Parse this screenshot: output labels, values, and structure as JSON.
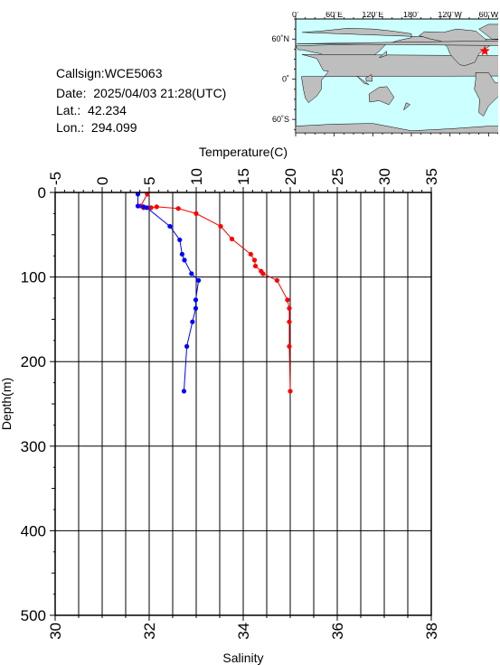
{
  "station": {
    "callsign_line": "Callsign:WCE5063",
    "date_label": "Date:",
    "date_value": "2025/04/03 21:28(UTC)",
    "lat_label": "Lat.:",
    "lat_value": "42.234",
    "lon_label": "Lon.:",
    "lon_value": "294.099"
  },
  "map": {
    "top_labels": [
      "0˚",
      "60˚E",
      "120˚E",
      "180˚",
      "120˚W",
      "60˚W",
      "0˚"
    ],
    "left_labels": [
      "60˚N",
      "0˚",
      "60˚S"
    ],
    "ocean_color": "#ccffff",
    "land_color": "#bebebe",
    "marker_color": "#ff0000",
    "marker_lat": 42.234,
    "marker_lon": 294.099
  },
  "chart_data": {
    "type": "line",
    "ylabel": "Depth(m)",
    "top_axis_label": "Temperature(C)",
    "bottom_axis_label": "Salinity",
    "ylim": [
      0,
      500
    ],
    "y_ticks": [
      "0",
      "100",
      "200",
      "300",
      "400",
      "500"
    ],
    "temp_lim": [
      -5,
      35
    ],
    "temp_ticks": [
      "-5",
      "0",
      "5",
      "10",
      "15",
      "20",
      "25",
      "30",
      "35"
    ],
    "sal_lim": [
      30,
      38
    ],
    "sal_ticks": [
      "30",
      "32",
      "34",
      "36",
      "38"
    ],
    "grid": true,
    "series": [
      {
        "axis": "temperature",
        "color": "#ff0000",
        "points": [
          [
            4.8,
            2
          ],
          [
            4.1,
            16
          ],
          [
            4.4,
            18
          ],
          [
            5.2,
            18
          ],
          [
            5.8,
            17
          ],
          [
            8.1,
            19
          ],
          [
            10.0,
            25
          ],
          [
            12.6,
            40
          ],
          [
            13.8,
            55
          ],
          [
            15.8,
            73
          ],
          [
            16.2,
            80
          ],
          [
            16.3,
            87
          ],
          [
            16.9,
            93
          ],
          [
            17.1,
            96
          ],
          [
            18.6,
            104
          ],
          [
            19.7,
            127
          ],
          [
            19.9,
            137
          ],
          [
            19.9,
            153
          ],
          [
            19.9,
            182
          ],
          [
            20.0,
            235
          ]
        ]
      },
      {
        "axis": "salinity",
        "color": "#0000ff",
        "points": [
          [
            31.76,
            2
          ],
          [
            31.76,
            16
          ],
          [
            31.88,
            17
          ],
          [
            31.95,
            18
          ],
          [
            32.44,
            40
          ],
          [
            32.65,
            56
          ],
          [
            32.7,
            73
          ],
          [
            32.75,
            80
          ],
          [
            32.9,
            96
          ],
          [
            33.05,
            104
          ],
          [
            32.99,
            127
          ],
          [
            32.99,
            137
          ],
          [
            32.92,
            153
          ],
          [
            32.8,
            182
          ],
          [
            32.74,
            235
          ]
        ]
      }
    ]
  }
}
